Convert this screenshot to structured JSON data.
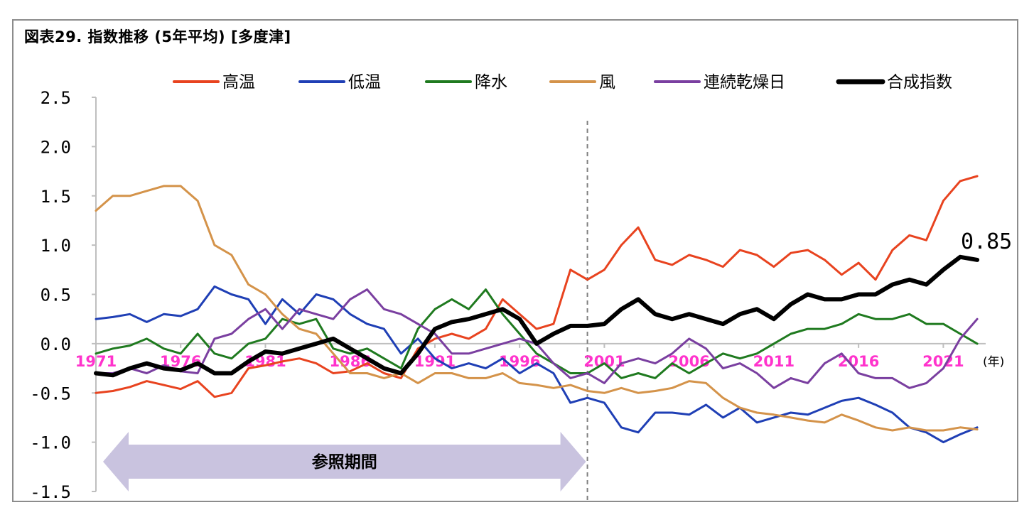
{
  "title": "図表29. 指数推移 (5年平均) [多度津]",
  "chart_data": {
    "type": "line",
    "title": "図表29. 指数推移 (5年平均) [多度津]",
    "xlabel": "(年)",
    "ylabel": "",
    "ylim": [
      -1.5,
      2.5
    ],
    "yticks": [
      "2.5",
      "2.0",
      "1.5",
      "1.0",
      "0.5",
      "0.0",
      "-0.5",
      "-1.0",
      "-1.5"
    ],
    "xlim": [
      1971,
      2023.5
    ],
    "xticks": [
      "1971",
      "1976",
      "1981",
      "1986",
      "1991",
      "1996",
      "2001",
      "2006",
      "2011",
      "2016",
      "2021"
    ],
    "x": [
      1971,
      1972,
      1973,
      1974,
      1975,
      1976,
      1977,
      1978,
      1979,
      1980,
      1981,
      1982,
      1983,
      1984,
      1985,
      1986,
      1987,
      1988,
      1989,
      1990,
      1991,
      1992,
      1993,
      1994,
      1995,
      1996,
      1997,
      1998,
      1999,
      2000,
      2001,
      2002,
      2003,
      2004,
      2005,
      2006,
      2007,
      2008,
      2009,
      2010,
      2011,
      2012,
      2013,
      2014,
      2015,
      2016,
      2017,
      2018,
      2019,
      2020,
      2021,
      2022,
      2023
    ],
    "series": [
      {
        "name": "高温",
        "color": "#e8431f",
        "width": 3,
        "values": [
          -0.5,
          -0.48,
          -0.44,
          -0.38,
          -0.42,
          -0.46,
          -0.38,
          -0.54,
          -0.5,
          -0.25,
          -0.22,
          -0.18,
          -0.15,
          -0.2,
          -0.3,
          -0.28,
          -0.2,
          -0.3,
          -0.35,
          -0.05,
          0.05,
          0.1,
          0.05,
          0.15,
          0.45,
          0.3,
          0.15,
          0.2,
          0.75,
          0.65,
          0.75,
          1.0,
          1.18,
          0.85,
          0.8,
          0.9,
          0.85,
          0.78,
          0.95,
          0.9,
          0.78,
          0.92,
          0.95,
          0.85,
          0.7,
          0.82,
          0.65,
          0.95,
          1.1,
          1.05,
          1.45,
          1.65,
          1.7
        ]
      },
      {
        "name": "低温",
        "color": "#1f3fb5",
        "width": 3,
        "values": [
          0.25,
          0.27,
          0.3,
          0.22,
          0.3,
          0.28,
          0.35,
          0.58,
          0.5,
          0.45,
          0.2,
          0.45,
          0.3,
          0.5,
          0.45,
          0.3,
          0.2,
          0.15,
          -0.1,
          0.05,
          -0.15,
          -0.25,
          -0.2,
          -0.25,
          -0.15,
          -0.3,
          -0.2,
          -0.3,
          -0.6,
          -0.55,
          -0.6,
          -0.85,
          -0.9,
          -0.7,
          -0.7,
          -0.72,
          -0.62,
          -0.75,
          -0.65,
          -0.8,
          -0.75,
          -0.7,
          -0.72,
          -0.65,
          -0.58,
          -0.55,
          -0.62,
          -0.7,
          -0.85,
          -0.9,
          -1.0,
          -0.92,
          -0.85
        ]
      },
      {
        "name": "降水",
        "color": "#1f7a1f",
        "width": 3,
        "values": [
          -0.1,
          -0.05,
          -0.02,
          0.05,
          -0.05,
          -0.1,
          0.1,
          -0.1,
          -0.15,
          0.0,
          0.05,
          0.25,
          0.2,
          0.25,
          -0.05,
          -0.1,
          -0.05,
          -0.15,
          -0.25,
          0.15,
          0.35,
          0.45,
          0.35,
          0.55,
          0.3,
          0.1,
          -0.1,
          -0.2,
          -0.3,
          -0.3,
          -0.2,
          -0.35,
          -0.3,
          -0.35,
          -0.2,
          -0.3,
          -0.2,
          -0.1,
          -0.15,
          -0.1,
          0.0,
          0.1,
          0.15,
          0.15,
          0.2,
          0.3,
          0.25,
          0.25,
          0.3,
          0.2,
          0.2,
          0.1,
          0.0
        ]
      },
      {
        "name": "風",
        "color": "#d4934a",
        "width": 3,
        "values": [
          1.35,
          1.5,
          1.5,
          1.55,
          1.6,
          1.6,
          1.45,
          1.0,
          0.9,
          0.6,
          0.5,
          0.3,
          0.15,
          0.1,
          -0.1,
          -0.3,
          -0.3,
          -0.35,
          -0.3,
          -0.4,
          -0.3,
          -0.3,
          -0.35,
          -0.35,
          -0.3,
          -0.4,
          -0.42,
          -0.45,
          -0.42,
          -0.48,
          -0.5,
          -0.45,
          -0.5,
          -0.48,
          -0.45,
          -0.38,
          -0.4,
          -0.55,
          -0.65,
          -0.7,
          -0.72,
          -0.75,
          -0.78,
          -0.8,
          -0.72,
          -0.78,
          -0.85,
          -0.88,
          -0.85,
          -0.88,
          -0.88,
          -0.85,
          -0.87
        ]
      },
      {
        "name": "連続乾燥日",
        "color": "#7a3fa0",
        "width": 3,
        "values": [
          -0.3,
          -0.3,
          -0.25,
          -0.3,
          -0.22,
          -0.28,
          -0.3,
          0.05,
          0.1,
          0.25,
          0.35,
          0.15,
          0.35,
          0.3,
          0.25,
          0.45,
          0.55,
          0.35,
          0.3,
          0.2,
          0.1,
          -0.1,
          -0.1,
          -0.05,
          0.0,
          0.05,
          0.0,
          -0.2,
          -0.35,
          -0.3,
          -0.4,
          -0.2,
          -0.15,
          -0.2,
          -0.1,
          0.05,
          -0.05,
          -0.25,
          -0.2,
          -0.3,
          -0.45,
          -0.35,
          -0.4,
          -0.2,
          -0.1,
          -0.3,
          -0.35,
          -0.35,
          -0.45,
          -0.4,
          -0.25,
          0.05,
          0.25
        ]
      },
      {
        "name": "合成指数",
        "color": "#000000",
        "width": 6,
        "values": [
          -0.3,
          -0.32,
          -0.25,
          -0.2,
          -0.25,
          -0.27,
          -0.2,
          -0.3,
          -0.3,
          -0.18,
          -0.08,
          -0.1,
          -0.05,
          0.0,
          0.05,
          -0.05,
          -0.15,
          -0.25,
          -0.3,
          -0.1,
          0.15,
          0.22,
          0.25,
          0.3,
          0.35,
          0.25,
          0.0,
          0.1,
          0.18,
          0.18,
          0.2,
          0.35,
          0.45,
          0.3,
          0.25,
          0.3,
          0.25,
          0.2,
          0.3,
          0.35,
          0.25,
          0.4,
          0.5,
          0.45,
          0.45,
          0.5,
          0.5,
          0.6,
          0.65,
          0.6,
          0.75,
          0.88,
          0.85
        ]
      }
    ],
    "end_label": "0.85",
    "reference_period": {
      "label": "参照期間",
      "from": 1971,
      "to": 2000
    },
    "divider_year": 2000,
    "legend_position": "top",
    "grid": false
  },
  "colors": {
    "frame": "#8c8c8c",
    "axis": "#bfbfbf",
    "xtick": "#ff33cc",
    "ref_arrow": "#c9c3df"
  }
}
